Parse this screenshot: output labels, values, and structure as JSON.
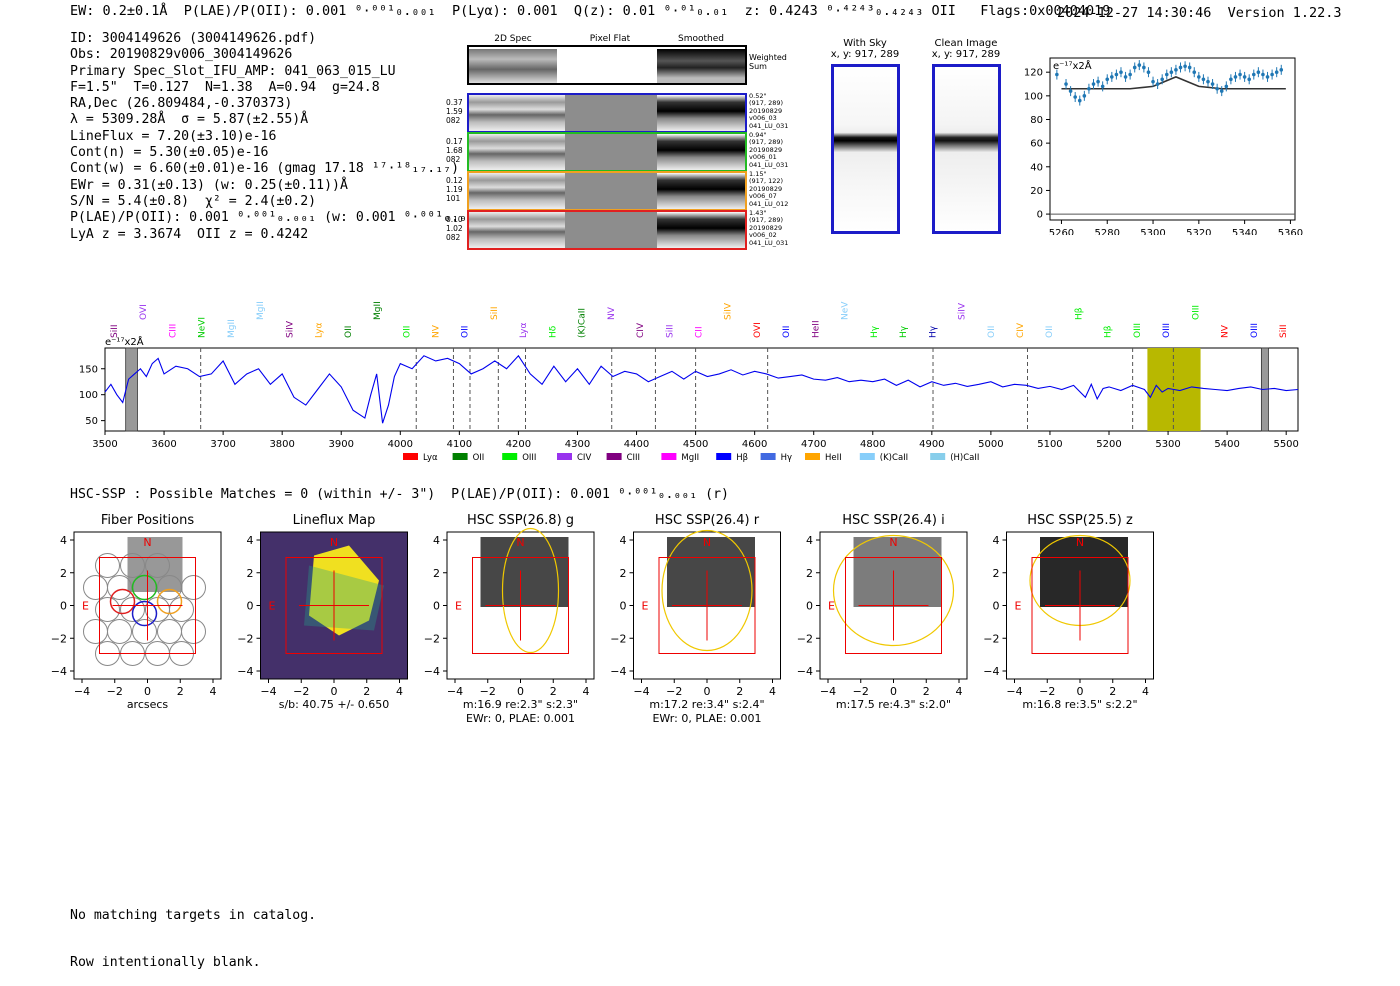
{
  "header": {
    "left": "EW: 0.2±0.1Å  P(LAE)/P(OII): 0.001 ⁰·⁰⁰¹₀.₀₀₁  P(Lyα): 0.001  Q(z): 0.01 ⁰·⁰¹₀.₀₁  z: 0.4243 ⁰·⁴²⁴³₀.₄₂₄₃ OII   Flags:0x00404019",
    "right": "2024-12-27 14:30:46  Version 1.22.3"
  },
  "details": [
    "ID: 3004149626 (3004149626.pdf)",
    "Obs: 20190829v006_3004149626",
    "Primary Spec_Slot_IFU_AMP: 041_063_015_LU",
    "F=1.5\"  T=0.127  N=1.38  A=0.94  g=24.8",
    "RA,Dec (26.809484,-0.370373)",
    "λ = 5309.28Å  σ = 5.87(±2.55)Å",
    "LineFlux = 7.20(±3.10)e-16",
    "Cont(n) = 5.30(±0.05)e-16",
    "Cont(w) = 6.60(±0.01)e-16 (gmag 17.18 ¹⁷·¹⁸₁₇.₁₇)",
    "EWr = 0.31(±0.13) (w: 0.25(±0.11))Å",
    "S/N = 5.4(±0.8)  χ² = 2.4(±0.2)",
    "P(LAE)/P(OII): 0.001 ⁰·⁰⁰¹₀.₀₀₁ (w: 0.001 ⁰·⁰⁰¹₀.₀₀₁)",
    "LyA z = 3.3674  OII z = 0.4242"
  ],
  "cutouts": {
    "columns": [
      "2D Spec",
      "Pixel Flat",
      "Smoothed"
    ],
    "weighted_label": "Weighted\nSum",
    "rows": [
      {
        "color": "#1c1cc8",
        "left": [
          "0.37",
          "1.59",
          "082"
        ],
        "right": [
          "0.52\"",
          "(917, 289)",
          "20190829",
          "v006_03",
          "041_LU_031"
        ]
      },
      {
        "color": "#22bb22",
        "left": [
          "0.17",
          "1.68",
          "082"
        ],
        "right": [
          "0.94\"",
          "(917, 289)",
          "20190829",
          "v006_01",
          "041_LU_031"
        ]
      },
      {
        "color": "#f0a020",
        "left": [
          "0.12",
          "1.19",
          "101"
        ],
        "right": [
          "1.15\"",
          "(917, 122)",
          "20190829",
          "v006_07",
          "041_LU_012"
        ]
      },
      {
        "color": "#e02020",
        "left": [
          "0.10",
          "1.02",
          "082"
        ],
        "right": [
          "1.43\"",
          "(917, 289)",
          "20190829",
          "v006_02",
          "041_LU_031"
        ]
      }
    ]
  },
  "sky_panels": [
    {
      "title": "With Sky",
      "coords": "x, y: 917, 289"
    },
    {
      "title": "Clean Image",
      "coords": "x, y: 917, 289"
    }
  ],
  "zoom_plot": {
    "unit": "e⁻¹⁷x2Å",
    "x_ticks": [
      "5260",
      "5280",
      "5300",
      "5320",
      "5340",
      "5360"
    ],
    "y_ticks": [
      "0",
      "20",
      "40",
      "60",
      "80",
      "100",
      "120"
    ]
  },
  "full_spectrum": {
    "unit": "e⁻¹⁷x2Å",
    "x_ticks": [
      "3500",
      "3600",
      "3700",
      "3800",
      "3900",
      "4000",
      "4100",
      "4200",
      "4300",
      "4400",
      "4500",
      "4600",
      "4700",
      "4800",
      "4900",
      "5000",
      "5100",
      "5200",
      "5300",
      "5400",
      "5500"
    ],
    "y_ticks": [
      "50",
      "100",
      "150"
    ],
    "legend": [
      {
        "label": "Lyα",
        "color": "#ff0000"
      },
      {
        "label": "OII",
        "color": "#008000"
      },
      {
        "label": "OIII",
        "color": "#00ee00"
      },
      {
        "label": "CIV",
        "color": "#9933ee"
      },
      {
        "label": "CIII",
        "color": "#800080"
      },
      {
        "label": "MgII",
        "color": "#ff00ff"
      },
      {
        "label": "Hβ",
        "color": "#0000ff"
      },
      {
        "label": "Hγ",
        "color": "#4169e1"
      },
      {
        "label": "HeII",
        "color": "#ffa500"
      },
      {
        "label": "(K)CaII",
        "color": "#87cefa"
      },
      {
        "label": "(H)CaII",
        "color": "#87ceeb"
      }
    ],
    "line_labels": [
      {
        "text": "SiII",
        "color": "#800080"
      },
      {
        "text": "OVI",
        "color": "#9933ee"
      },
      {
        "text": "CIII",
        "color": "#ff00ff"
      },
      {
        "text": "NeVI",
        "color": "#00cc00"
      },
      {
        "text": "MgII",
        "color": "#87cefa"
      },
      {
        "text": "MgII",
        "color": "#87cefa"
      },
      {
        "text": "SiIV",
        "color": "#800080"
      },
      {
        "text": "Lyα",
        "color": "#ffa500"
      },
      {
        "text": "OII",
        "color": "#008000"
      },
      {
        "text": "MgII",
        "color": "#008000"
      },
      {
        "text": "OII",
        "color": "#00ee00"
      },
      {
        "text": "NV",
        "color": "#ffa500"
      },
      {
        "text": "OII",
        "color": "#0000ff"
      },
      {
        "text": "SiII",
        "color": "#ffa500"
      },
      {
        "text": "Lyα",
        "color": "#9933ee"
      },
      {
        "text": "Hδ",
        "color": "#00ee00"
      },
      {
        "text": "(K)CaII",
        "color": "#008000"
      },
      {
        "text": "NV",
        "color": "#9933ee"
      },
      {
        "text": "CIV",
        "color": "#800080"
      },
      {
        "text": "SiII",
        "color": "#9933ee"
      },
      {
        "text": "CII",
        "color": "#ff00ff"
      },
      {
        "text": "SiIV",
        "color": "#ffa500"
      },
      {
        "text": "OVI",
        "color": "#ff0000"
      },
      {
        "text": "OII",
        "color": "#0000ff"
      },
      {
        "text": "HeII",
        "color": "#800080"
      },
      {
        "text": "NeV",
        "color": "#87cefa"
      },
      {
        "text": "Hγ",
        "color": "#00ee00"
      },
      {
        "text": "Hγ",
        "color": "#00cc00"
      },
      {
        "text": "Hγ",
        "color": "#0000aa"
      },
      {
        "text": "SiIV",
        "color": "#9933ee"
      },
      {
        "text": "OII",
        "color": "#87cefa"
      },
      {
        "text": "CIV",
        "color": "#ffa500"
      },
      {
        "text": "OII",
        "color": "#87cefa"
      },
      {
        "text": "Hβ",
        "color": "#00ee00"
      },
      {
        "text": "Hβ",
        "color": "#00ee00"
      },
      {
        "text": "OIII",
        "color": "#00ee00"
      },
      {
        "text": "OIII",
        "color": "#0000ff"
      },
      {
        "text": "OIII",
        "color": "#00ee00"
      },
      {
        "text": "NV",
        "color": "#ff0000"
      },
      {
        "text": "OIII",
        "color": "#0000ff"
      },
      {
        "text": "SiII",
        "color": "#ff0000"
      }
    ]
  },
  "hsc_line": "HSC-SSP : Possible Matches = 0 (within +/- 3\")  P(LAE)/P(OII): 0.001 ⁰·⁰⁰¹₀.₀₀₁ (r)",
  "thumbnails": [
    {
      "title": "Fiber Positions",
      "caption1": "arcsecs",
      "caption2": ""
    },
    {
      "title": "Lineflux Map",
      "caption1": "s/b: 40.75 +/- 0.650",
      "caption2": ""
    },
    {
      "title": "HSC SSP(26.8) g",
      "caption1": "m:16.9  re:2.3\"  s:2.3\"",
      "caption2": "EWr: 0, PLAE: 0.001"
    },
    {
      "title": "HSC SSP(26.4) r",
      "caption1": "m:17.2  re:3.4\"  s:2.4\"",
      "caption2": "EWr: 0, PLAE: 0.001"
    },
    {
      "title": "HSC SSP(26.4) i",
      "caption1": "m:17.5  re:4.3\"  s:2.0\"",
      "caption2": ""
    },
    {
      "title": "HSC SSP(25.5) z",
      "caption1": "m:16.8  re:3.5\"  s:2.2\"",
      "caption2": ""
    }
  ],
  "thumb_axis": {
    "ticks": [
      "4",
      "2",
      "0",
      "−2",
      "−4"
    ],
    "xticks": [
      "−4",
      "−2",
      "0",
      "2",
      "4"
    ],
    "north": "N",
    "east": "E"
  },
  "footer": [
    "No matching targets in catalog.",
    "Row intentionally blank."
  ],
  "chart_data": [
    {
      "type": "line",
      "title": "",
      "xlabel": "",
      "ylabel": "e⁻¹⁷x2Å",
      "xlim": [
        3500,
        5520
      ],
      "ylim": [
        30,
        190
      ],
      "x": [
        3500,
        3510,
        3520,
        3530,
        3540,
        3550,
        3560,
        3570,
        3580,
        3590,
        3600,
        3620,
        3640,
        3660,
        3680,
        3700,
        3720,
        3740,
        3760,
        3780,
        3800,
        3820,
        3840,
        3860,
        3880,
        3900,
        3920,
        3940,
        3950,
        3960,
        3970,
        3980,
        3990,
        4000,
        4020,
        4040,
        4060,
        4080,
        4100,
        4120,
        4140,
        4160,
        4180,
        4200,
        4220,
        4240,
        4260,
        4280,
        4300,
        4320,
        4340,
        4360,
        4380,
        4400,
        4420,
        4440,
        4460,
        4480,
        4500,
        4520,
        4540,
        4560,
        4580,
        4600,
        4620,
        4640,
        4660,
        4680,
        4700,
        4720,
        4740,
        4760,
        4780,
        4800,
        4820,
        4840,
        4860,
        4880,
        4900,
        4920,
        4940,
        4960,
        4980,
        5000,
        5020,
        5040,
        5060,
        5080,
        5100,
        5120,
        5140,
        5160,
        5170,
        5180,
        5190,
        5200,
        5220,
        5240,
        5260,
        5270,
        5280,
        5290,
        5300,
        5310,
        5320,
        5340,
        5360,
        5380,
        5400,
        5420,
        5440,
        5460,
        5480,
        5500,
        5520
      ],
      "y": [
        105,
        120,
        100,
        85,
        130,
        140,
        150,
        135,
        160,
        170,
        140,
        155,
        150,
        135,
        140,
        165,
        120,
        140,
        150,
        120,
        140,
        95,
        80,
        110,
        140,
        115,
        70,
        55,
        100,
        140,
        45,
        80,
        135,
        160,
        150,
        175,
        165,
        170,
        160,
        140,
        150,
        165,
        150,
        175,
        140,
        120,
        155,
        125,
        150,
        120,
        155,
        135,
        145,
        140,
        125,
        135,
        145,
        130,
        145,
        135,
        140,
        148,
        138,
        145,
        140,
        132,
        135,
        138,
        130,
        128,
        133,
        125,
        128,
        125,
        130,
        118,
        128,
        115,
        125,
        118,
        122,
        116,
        120,
        125,
        115,
        120,
        118,
        112,
        116,
        110,
        118,
        95,
        120,
        92,
        112,
        115,
        108,
        118,
        110,
        95,
        118,
        105,
        112,
        110,
        108,
        115,
        112,
        110,
        108,
        112,
        115,
        110,
        112,
        108,
        110
      ],
      "shaded_region": [
        5265,
        5355
      ],
      "gray_regions": [
        [
          3535,
          3555
        ],
        [
          5458,
          5470
        ]
      ],
      "dashed_lines": [
        3662,
        4027,
        4090,
        4118,
        4166,
        4212,
        4358,
        4432,
        4500,
        4622,
        4902,
        5062,
        5240,
        5309
      ]
    },
    {
      "type": "scatter",
      "title": "",
      "xlabel": "",
      "ylabel": "e⁻¹⁷x2Å",
      "xlim": [
        5255,
        5362
      ],
      "ylim": [
        -5,
        132
      ],
      "x": [
        5258,
        5262,
        5264,
        5266,
        5268,
        5270,
        5272,
        5274,
        5276,
        5278,
        5280,
        5282,
        5284,
        5286,
        5288,
        5290,
        5292,
        5294,
        5296,
        5298,
        5300,
        5302,
        5304,
        5306,
        5308,
        5310,
        5312,
        5314,
        5316,
        5318,
        5320,
        5322,
        5324,
        5326,
        5328,
        5330,
        5332,
        5334,
        5336,
        5338,
        5340,
        5342,
        5344,
        5346,
        5348,
        5350,
        5352,
        5354,
        5356
      ],
      "y": [
        118,
        110,
        104,
        99,
        96,
        100,
        106,
        110,
        112,
        108,
        114,
        116,
        118,
        120,
        116,
        118,
        124,
        126,
        124,
        120,
        112,
        110,
        114,
        118,
        120,
        122,
        124,
        125,
        124,
        120,
        116,
        114,
        112,
        110,
        106,
        104,
        108,
        114,
        116,
        118,
        116,
        114,
        118,
        120,
        118,
        116,
        118,
        120,
        122
      ],
      "series": [
        {
          "name": "",
          "type": "model",
          "x": [
            5260,
            5270,
            5280,
            5290,
            5300,
            5305,
            5310,
            5315,
            5320,
            5330,
            5340,
            5350,
            5358
          ],
          "y": [
            106,
            106,
            106,
            106,
            108,
            112,
            116,
            112,
            108,
            106,
            106,
            106,
            106
          ]
        }
      ]
    }
  ]
}
